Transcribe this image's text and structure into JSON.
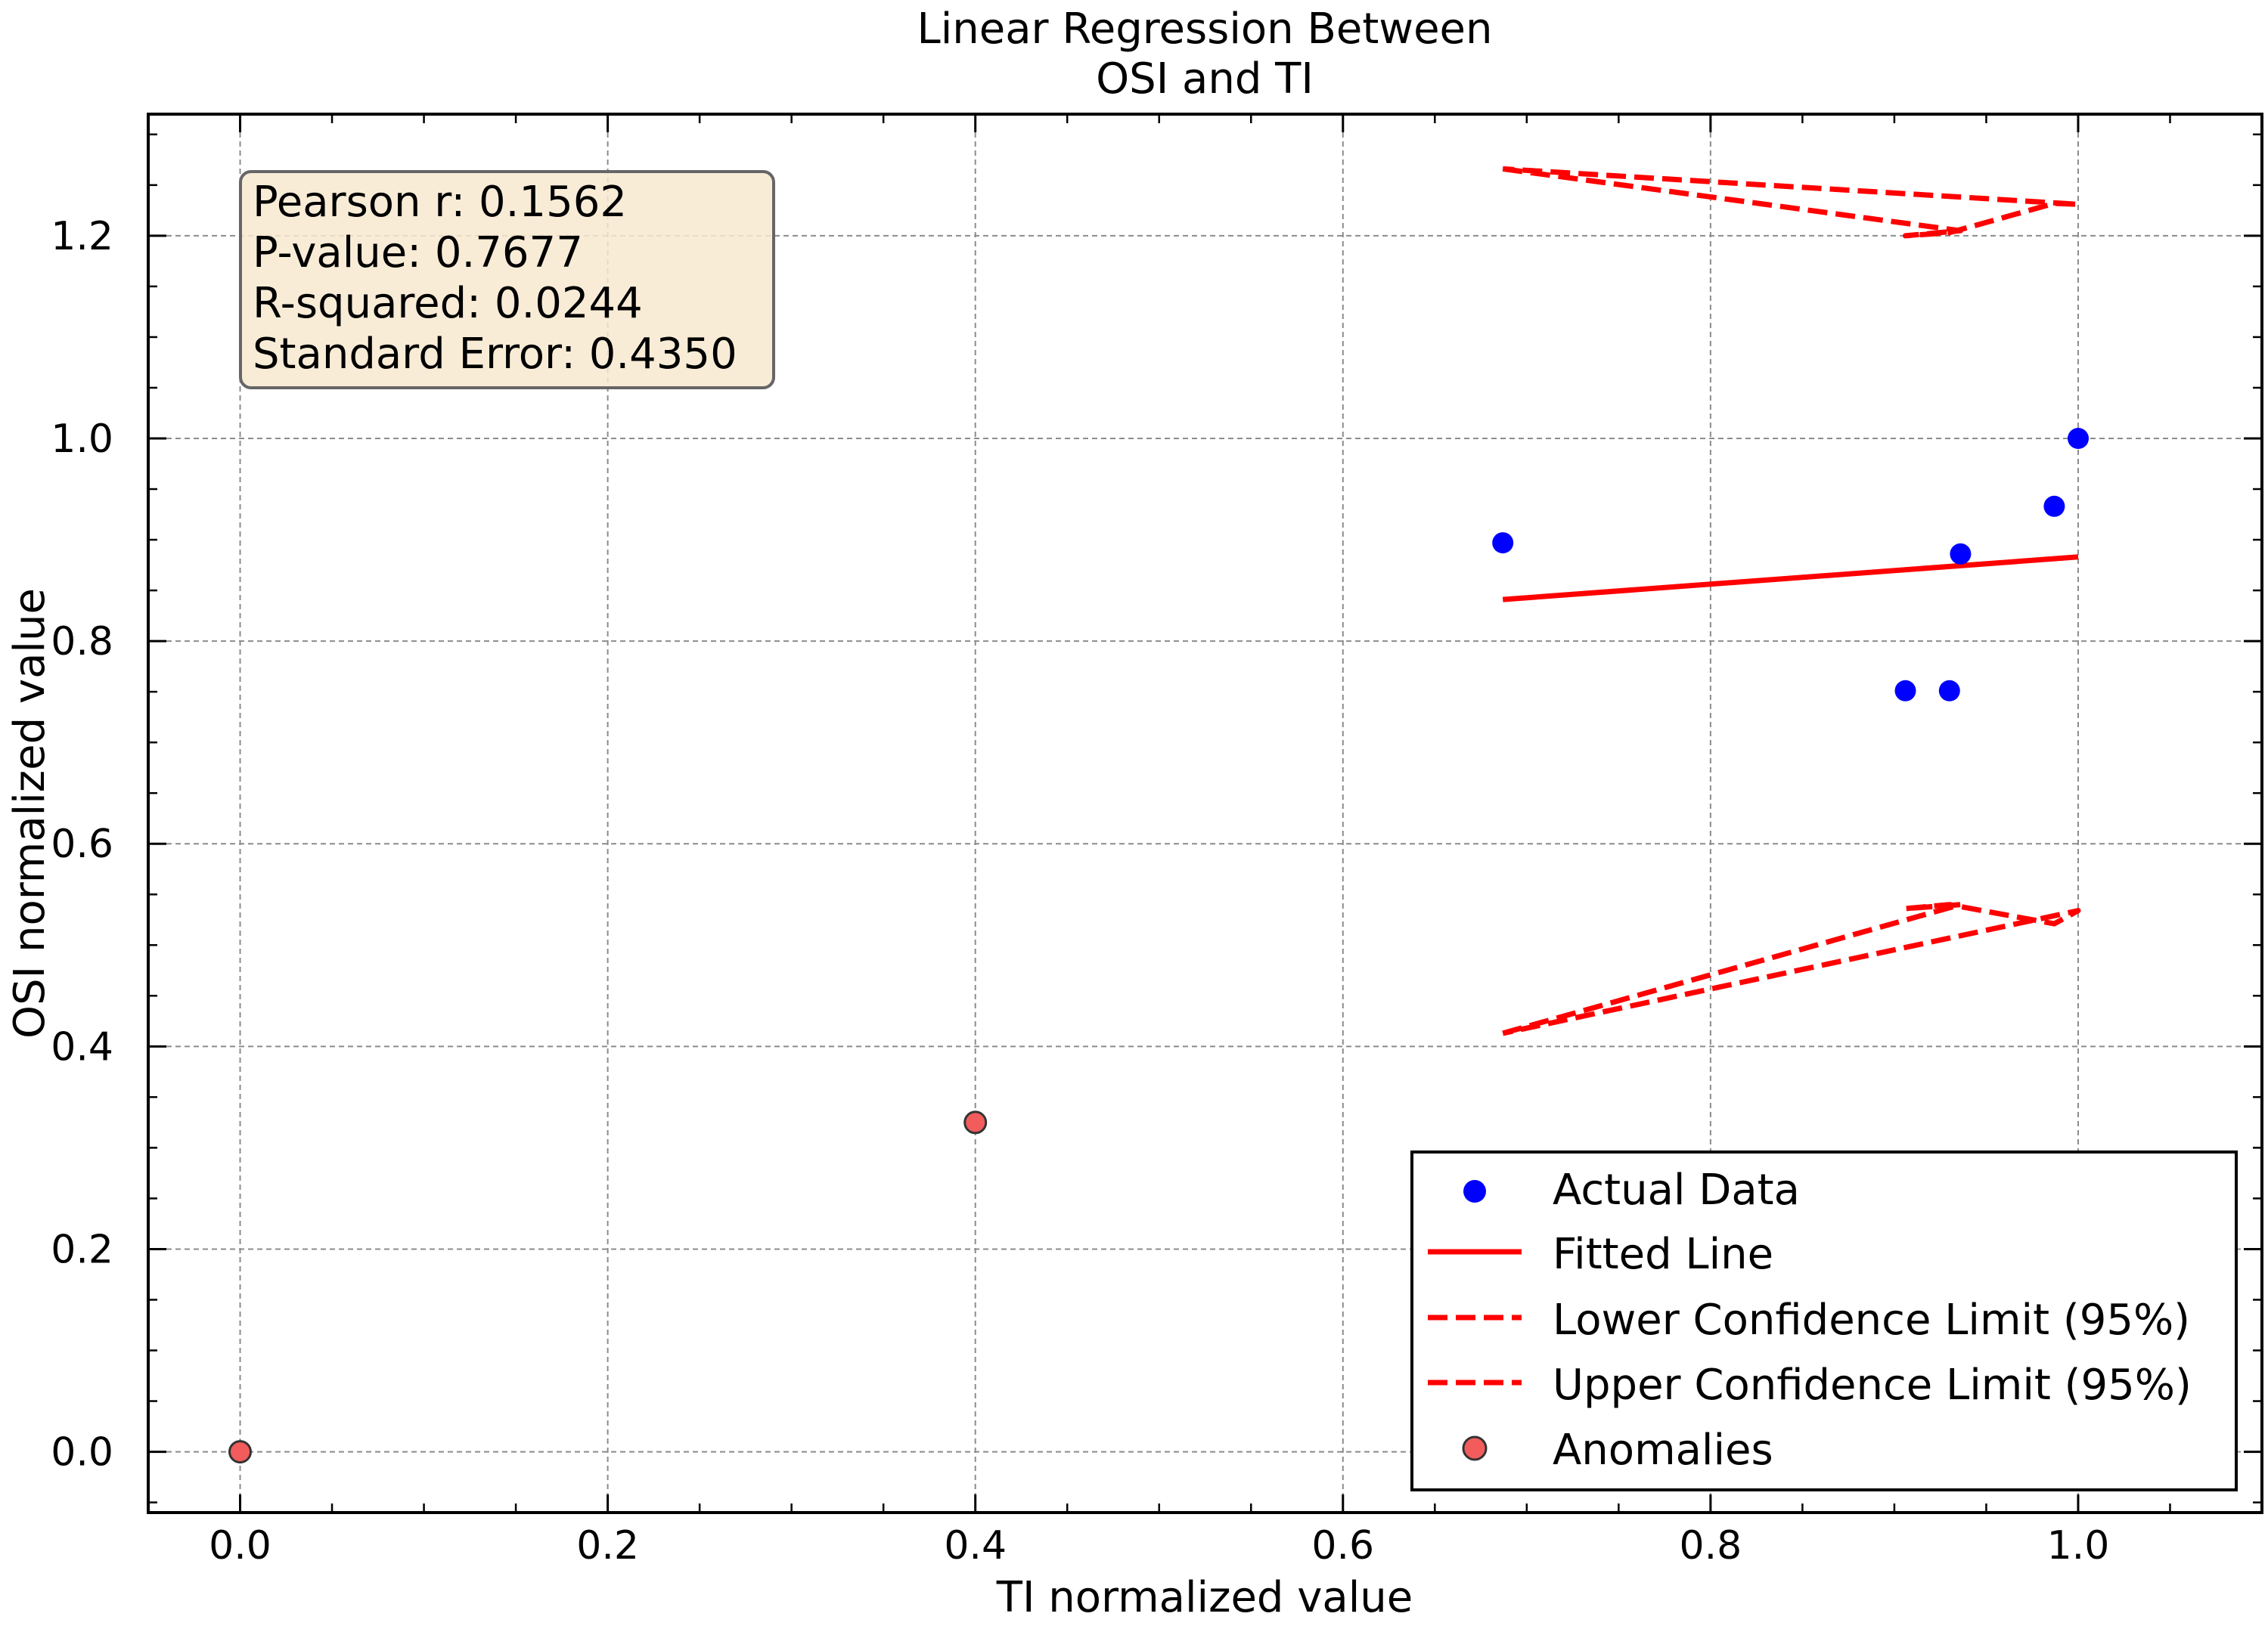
{
  "chart_data": {
    "type": "scatter",
    "title_lines": [
      "Linear Regression Between",
      "OSI and TI"
    ],
    "xlabel": "TI normalized value",
    "ylabel": "OSI normalized value",
    "xlim": [
      -0.05,
      1.1
    ],
    "ylim": [
      -0.06,
      1.32
    ],
    "xticks": [
      "0.0",
      "0.2",
      "0.4",
      "0.6",
      "0.8",
      "1.0"
    ],
    "yticks": [
      "0.0",
      "0.2",
      "0.4",
      "0.6",
      "0.8",
      "1.0",
      "1.2"
    ],
    "grid": true,
    "grid_style": "dashed",
    "legend_position": "lower-right",
    "stats_box": {
      "lines": [
        "Pearson r: 0.1562",
        "P-value: 0.7677",
        "R-squared: 0.0244",
        "Standard Error: 0.4350"
      ]
    },
    "series": [
      {
        "name": "Actual Data",
        "kind": "scatter",
        "color": "#0000ff",
        "points": [
          [
            0.687,
            0.897
          ],
          [
            0.906,
            0.751
          ],
          [
            0.93,
            0.751
          ],
          [
            0.936,
            0.886
          ],
          [
            0.987,
            0.933
          ],
          [
            1.0,
            1.0
          ]
        ]
      },
      {
        "name": "Fitted Line",
        "kind": "line",
        "color": "#ff0000",
        "points": [
          [
            0.687,
            0.841
          ],
          [
            1.0,
            0.883
          ]
        ]
      },
      {
        "name": "Lower Confidence Limit (95%)",
        "kind": "dashed",
        "color": "#ff0000",
        "points": [
          [
            0.687,
            0.413
          ],
          [
            0.936,
            0.54
          ],
          [
            0.906,
            0.536
          ],
          [
            0.93,
            0.54
          ],
          [
            0.987,
            0.521
          ],
          [
            1.0,
            0.534
          ],
          [
            0.687,
            0.413
          ]
        ]
      },
      {
        "name": "Upper Confidence Limit (95%)",
        "kind": "dashed",
        "color": "#ff0000",
        "points": [
          [
            0.687,
            1.266
          ],
          [
            0.936,
            1.205
          ],
          [
            0.906,
            1.2
          ],
          [
            0.93,
            1.203
          ],
          [
            0.987,
            1.232
          ],
          [
            1.0,
            1.231
          ],
          [
            0.687,
            1.266
          ]
        ]
      },
      {
        "name": "Anomalies",
        "kind": "scatter",
        "color": "#f25c5c",
        "edgecolor": "#333333",
        "points": [
          [
            0.0,
            0.0
          ],
          [
            0.4,
            0.325
          ]
        ]
      }
    ]
  }
}
